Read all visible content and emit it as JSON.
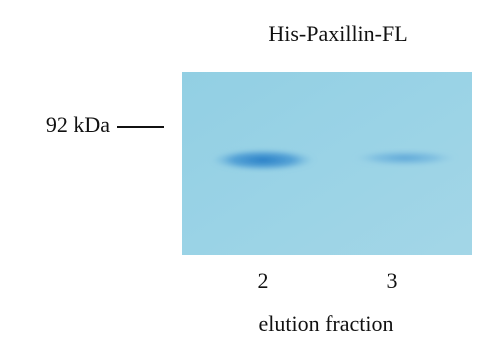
{
  "figure": {
    "title": "His-Paxillin-FL",
    "marker": "92 kDa",
    "lanes": [
      "2",
      "3"
    ],
    "xlabel": "elution fraction"
  }
}
